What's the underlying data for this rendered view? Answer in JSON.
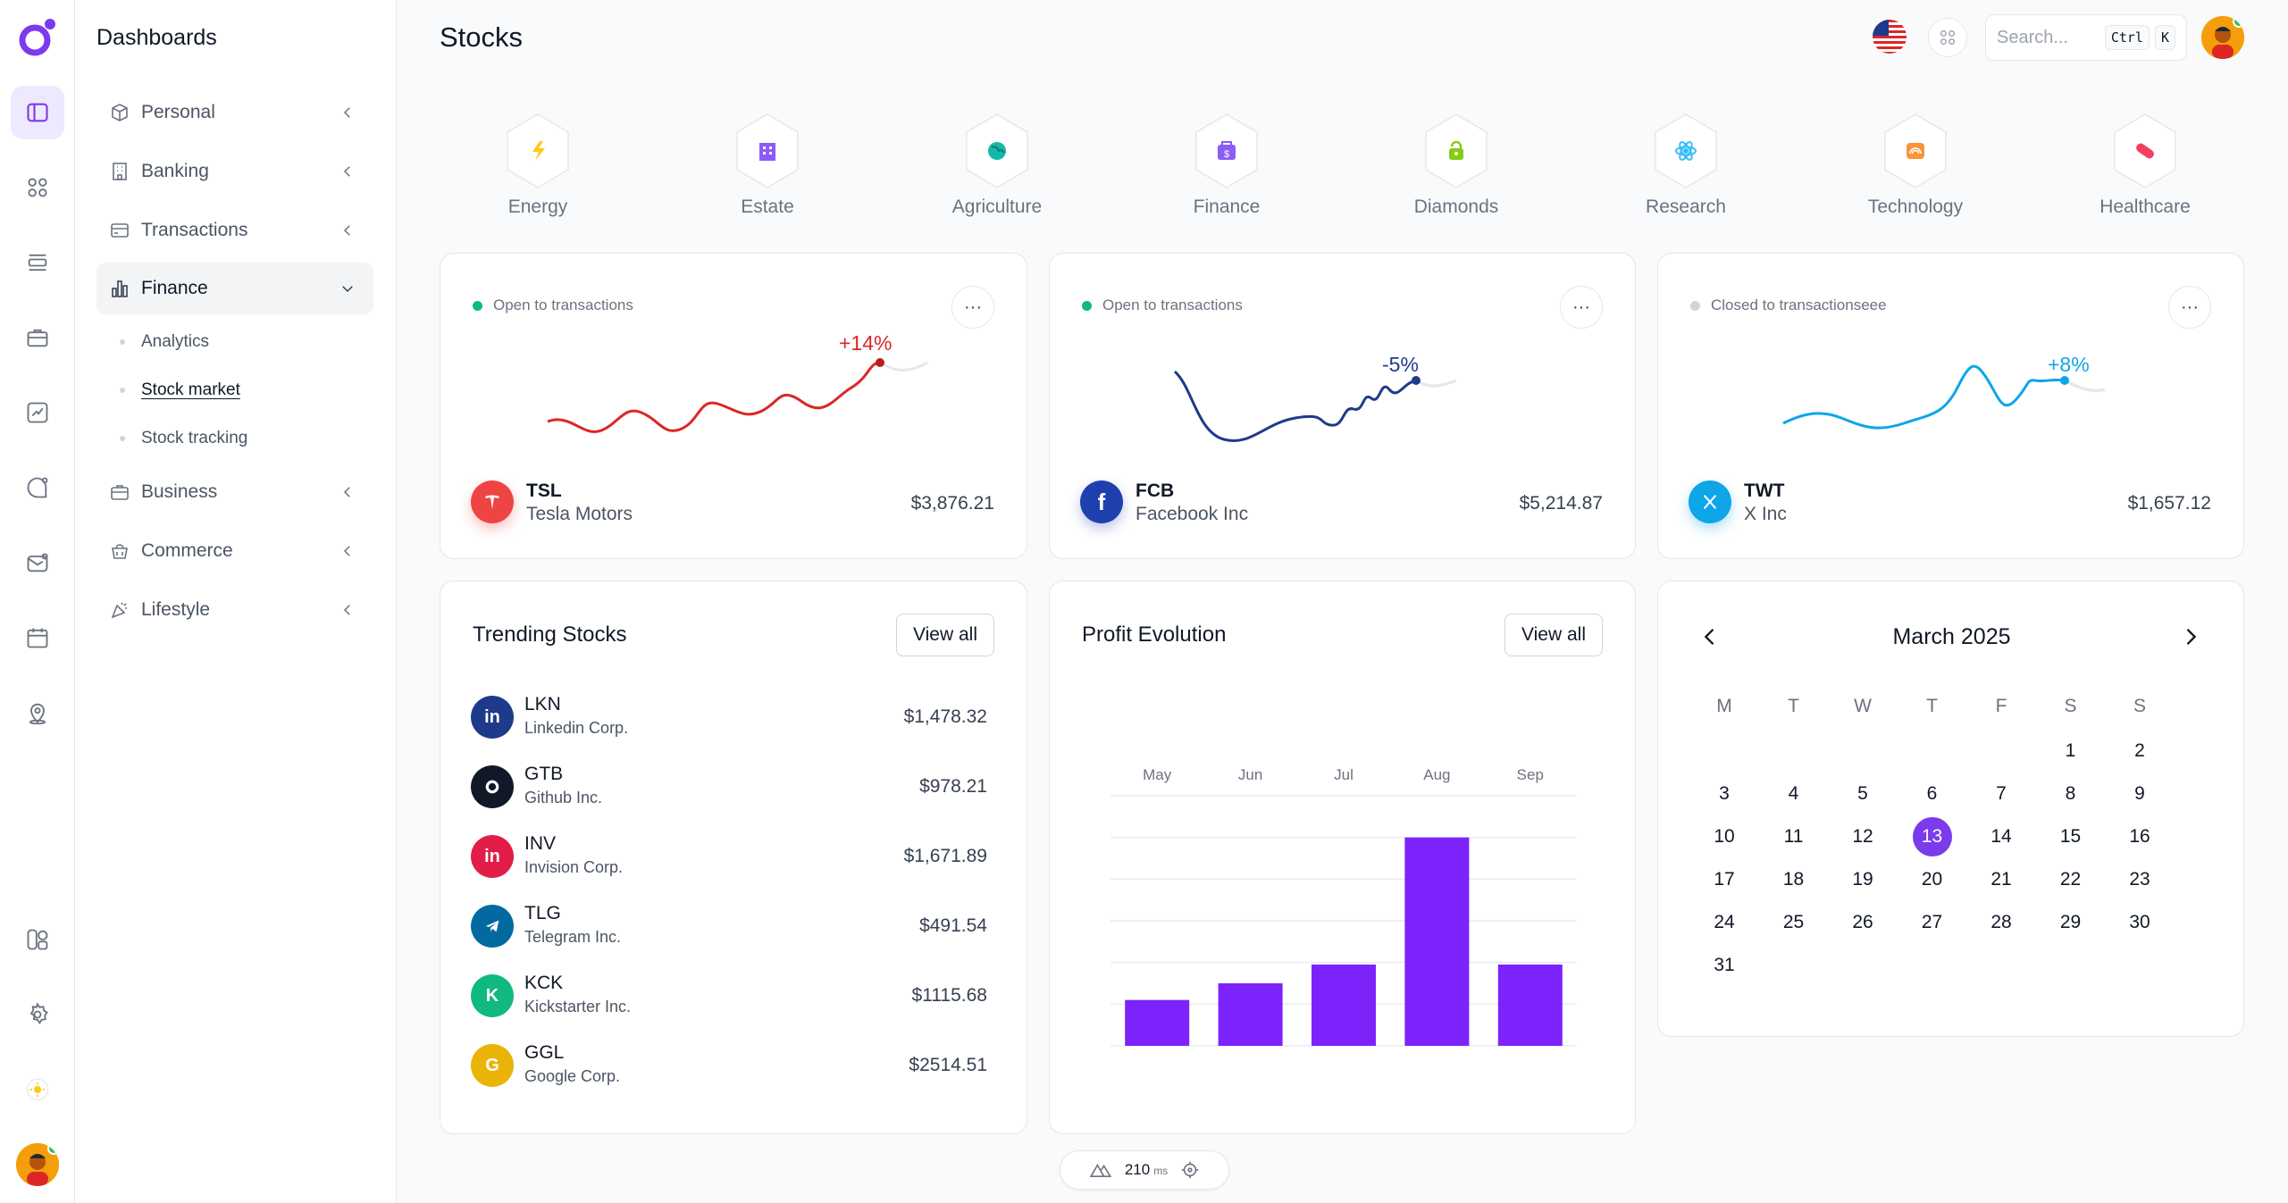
{
  "sidebar": {
    "title": "Dashboards",
    "items": [
      {
        "label": "Personal",
        "icon": "box-icon"
      },
      {
        "label": "Banking",
        "icon": "building-icon"
      },
      {
        "label": "Transactions",
        "icon": "credit-card-icon"
      },
      {
        "label": "Finance",
        "icon": "bar-chart-icon"
      },
      {
        "label": "Business",
        "icon": "briefcase-icon"
      },
      {
        "label": "Commerce",
        "icon": "shopping-basket-icon"
      },
      {
        "label": "Lifestyle",
        "icon": "party-icon"
      }
    ],
    "finance_sub": [
      "Analytics",
      "Stock market",
      "Stock tracking"
    ]
  },
  "header": {
    "title": "Stocks",
    "search_placeholder": "Search...",
    "shortcut_ctrl": "Ctrl",
    "shortcut_key": "K"
  },
  "categories": [
    {
      "label": "Energy",
      "color": "#facc15"
    },
    {
      "label": "Estate",
      "color": "#8b5cf6"
    },
    {
      "label": "Agriculture",
      "color": "#14b8a6"
    },
    {
      "label": "Finance",
      "color": "#8b5cf6"
    },
    {
      "label": "Diamonds",
      "color": "#84cc16"
    },
    {
      "label": "Research",
      "color": "#38bdf8"
    },
    {
      "label": "Technology",
      "color": "#fb923c"
    },
    {
      "label": "Healthcare",
      "color": "#f43f5e"
    }
  ],
  "stock_cards": [
    {
      "status": "Open to transactions",
      "status_color": "#10b981",
      "change": "+14%",
      "change_color": "#dc2626",
      "ticker": "TSL",
      "company": "Tesla Motors",
      "price": "$3,876.21",
      "logo_color": "#ef4444"
    },
    {
      "status": "Open to transactions",
      "status_color": "#10b981",
      "change": "-5%",
      "change_color": "#1e3a8a",
      "ticker": "FCB",
      "company": "Facebook Inc",
      "price": "$5,214.87",
      "logo_color": "#1e40af"
    },
    {
      "status": "Closed to transactionseee",
      "status_color": "#d1d5db",
      "change": "+8%",
      "change_color": "#0ea5e9",
      "ticker": "TWT",
      "company": "X Inc",
      "price": "$1,657.12",
      "logo_color": "#0ea5e9"
    }
  ],
  "trending": {
    "title": "Trending Stocks",
    "view_all": "View all",
    "rows": [
      {
        "symbol": "LKN",
        "name": "Linkedin Corp.",
        "price": "$1,478.32",
        "color": "#1e3a8a",
        "glyph": "in"
      },
      {
        "symbol": "GTB",
        "name": "Github Inc.",
        "price": "$978.21",
        "color": "#111827",
        "glyph": "gh"
      },
      {
        "symbol": "INV",
        "name": "Invision Corp.",
        "price": "$1,671.89",
        "color": "#e11d48",
        "glyph": "in"
      },
      {
        "symbol": "TLG",
        "name": "Telegram Inc.",
        "price": "$491.54",
        "color": "#0369a1",
        "glyph": "tg"
      },
      {
        "symbol": "KCK",
        "name": "Kickstarter Inc.",
        "price": "$1115.68",
        "color": "#10b981",
        "glyph": "K"
      },
      {
        "symbol": "GGL",
        "name": "Google Corp.",
        "price": "$2514.51",
        "color": "#eab308",
        "glyph": "G"
      }
    ]
  },
  "profit": {
    "title": "Profit Evolution",
    "view_all": "View all"
  },
  "chart_data": {
    "type": "bar",
    "title": "Profit Evolution",
    "categories": [
      "May",
      "Jun",
      "Jul",
      "Aug",
      "Sep"
    ],
    "values": [
      22,
      30,
      39,
      100,
      39
    ],
    "ylim": [
      0,
      120
    ],
    "grid": true,
    "color": "#7c22fb"
  },
  "calendar": {
    "month": "March 2025",
    "weekdays": [
      "M",
      "T",
      "W",
      "T",
      "F",
      "S",
      "S"
    ],
    "first_weekday_index": 5,
    "days_in_month": 31,
    "today": 13
  },
  "devbar": {
    "value": "210",
    "unit": "ms"
  }
}
